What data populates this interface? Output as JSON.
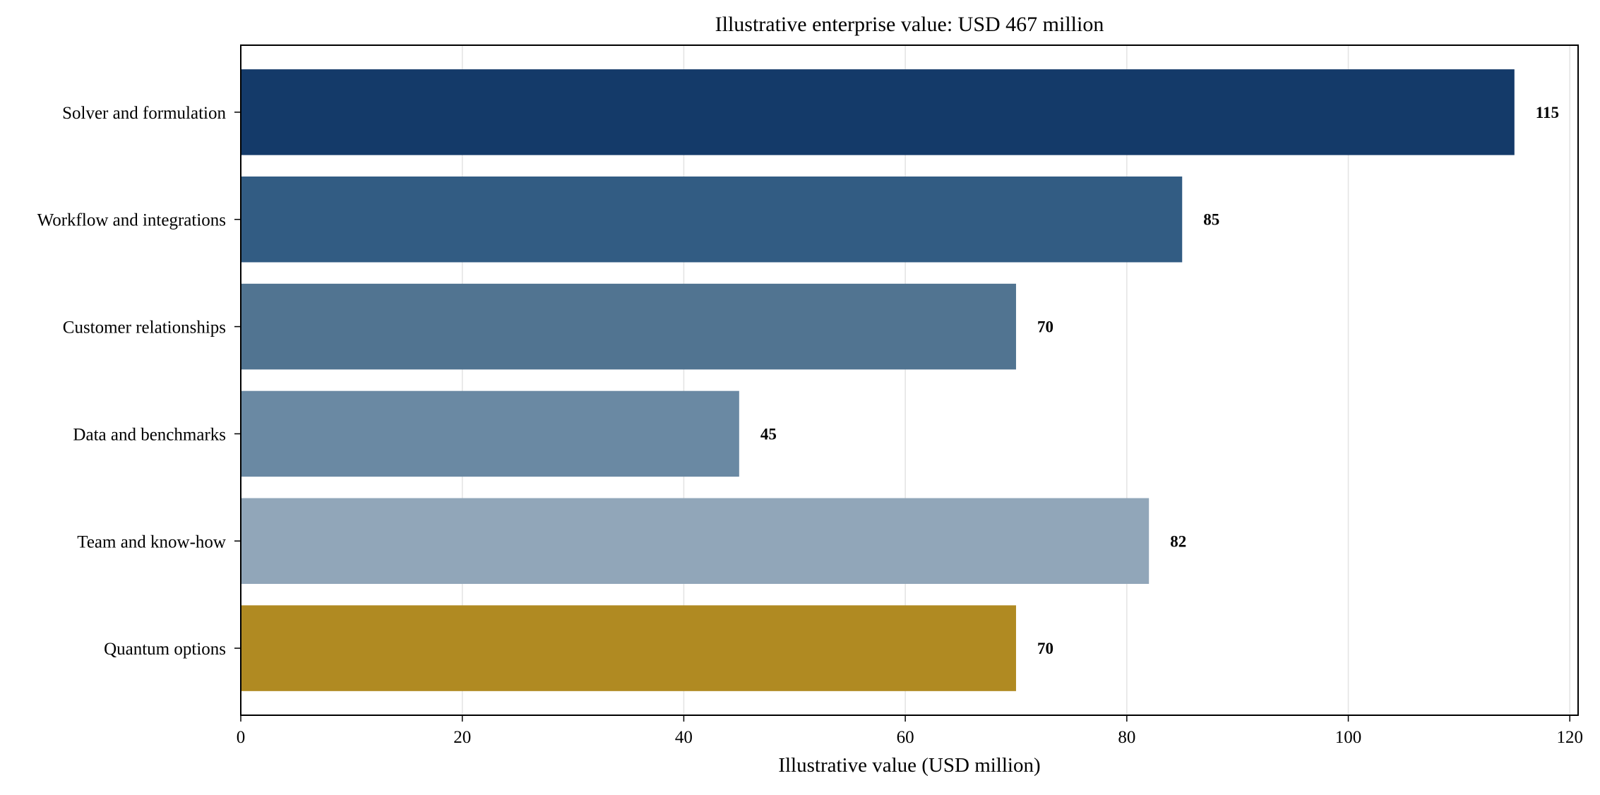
{
  "chart_data": {
    "type": "bar",
    "orientation": "horizontal",
    "title": "Illustrative enterprise value: USD 467 million",
    "xlabel": "Illustrative value (USD million)",
    "ylabel": "",
    "categories": [
      "Solver and formulation",
      "Workflow and integrations",
      "Customer relationships",
      "Data and benchmarks",
      "Team and know-how",
      "Quantum options"
    ],
    "values": [
      115,
      85,
      70,
      45,
      82,
      70
    ],
    "value_labels": [
      "115",
      "85",
      "70",
      "45",
      "82",
      "70"
    ],
    "bar_colors": [
      "#143a69",
      "#325c83",
      "#517491",
      "#6a89a3",
      "#91a6b9",
      "#b08a22"
    ],
    "xlim": [
      0,
      120.75
    ],
    "xticks": [
      0,
      20,
      40,
      60,
      80,
      100,
      120
    ],
    "xtick_labels": [
      "0",
      "20",
      "40",
      "60",
      "80",
      "100",
      "120"
    ],
    "grid": "x-axis vertical lines",
    "legend": "none"
  }
}
